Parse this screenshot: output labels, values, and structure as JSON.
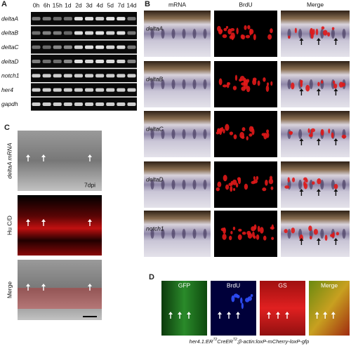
{
  "panels": {
    "a": "A",
    "b": "B",
    "c": "C",
    "d": "D"
  },
  "panel_a": {
    "timepoints": [
      "0h",
      "6h",
      "15h",
      "1d",
      "2d",
      "3d",
      "4d",
      "5d",
      "7d",
      "14d"
    ],
    "genes": [
      "deltaA",
      "deltaB",
      "deltaC",
      "deltaD",
      "notch1",
      "her4",
      "gapdh"
    ]
  },
  "panel_b": {
    "columns": [
      "mRNA",
      "BrdU",
      "Merge"
    ],
    "rows": [
      "deltaA",
      "deltaB",
      "deltaC",
      "deltaD",
      "notch1"
    ]
  },
  "panel_c": {
    "rows": [
      "deltaA mRNA",
      "Hu C/D",
      "Merge"
    ],
    "annotation": "7dpi"
  },
  "panel_d": {
    "columns": [
      "GFP",
      "BrdU",
      "GS",
      "Merge"
    ],
    "caption": [
      "her4.1:ER",
      "T2",
      "CreER",
      "T2",
      ";β-actin:loxP-mCherry-loxP-gfp"
    ]
  }
}
